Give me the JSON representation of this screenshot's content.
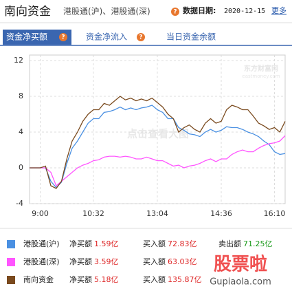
{
  "header": {
    "title": "南向资金",
    "subtitle": "港股通(沪)、港股通(深)",
    "date_label": "数据日期:",
    "date": "2020-12-15",
    "more": "更多"
  },
  "tabs": [
    "资金净买额",
    "资金净流入",
    "当日资金余额"
  ],
  "watermarks": {
    "center": "点击查看大图",
    "logo": "东方财富网",
    "logo_sub": "eastmoney.com",
    "corner": "股票啦",
    "corner_sub": "Gupiaola.com"
  },
  "chart_data": {
    "type": "line",
    "categories": [
      null,
      null,
      "9:00",
      null,
      null,
      null,
      null,
      null,
      null,
      null,
      null,
      null,
      "10:32",
      null,
      null,
      null,
      null,
      null,
      null,
      null,
      null,
      null,
      null,
      null,
      "13:04",
      null,
      null,
      null,
      null,
      null,
      null,
      null,
      null,
      null,
      null,
      null,
      "14:36",
      null,
      null,
      null,
      null,
      null,
      null,
      null,
      null,
      null,
      "16:10",
      null,
      null
    ],
    "series": [
      {
        "name": "港股通(沪)",
        "color": "#4a90e2",
        "values": [
          0,
          0,
          0,
          0,
          -1.5,
          -2.2,
          -1.6,
          0.5,
          2.2,
          3,
          4,
          5,
          5.5,
          5.5,
          6.2,
          6.3,
          6.5,
          6.8,
          6.5,
          6.7,
          6.5,
          6.7,
          6.8,
          7,
          6.5,
          6.2,
          5.5,
          5.5,
          4.5,
          4.2,
          3.8,
          3.7,
          3.5,
          4,
          4.3,
          4,
          4.2,
          4.6,
          4.5,
          4.5,
          4.3,
          4,
          3.8,
          3.5,
          3,
          2.6,
          1.8,
          1.5,
          1.6
        ]
      },
      {
        "name": "港股通(深)",
        "color": "#ff55ff",
        "values": [
          0,
          0,
          0,
          0,
          -0.5,
          -2,
          -1.5,
          -1,
          -0.5,
          0,
          0.3,
          0.5,
          0.8,
          0.9,
          1.2,
          1.3,
          1.3,
          1.2,
          1.3,
          1.2,
          1,
          1,
          1.2,
          1,
          0.8,
          0.8,
          0.5,
          0.2,
          0.3,
          0,
          0.2,
          0.3,
          0.5,
          0.8,
          1,
          0.7,
          1,
          1,
          1.5,
          1.8,
          2,
          1.8,
          1.8,
          2.2,
          2.5,
          2.7,
          2.8,
          3,
          3.6
        ]
      },
      {
        "name": "南向资金",
        "color": "#7a4a1e",
        "values": [
          0,
          0,
          0,
          0.2,
          -2,
          -2.3,
          -1.5,
          1,
          3,
          4,
          5.2,
          6,
          6.5,
          6.5,
          7.2,
          7,
          7.5,
          8,
          7.6,
          7.8,
          7.5,
          7.7,
          7.5,
          7.8,
          7.3,
          6.8,
          6,
          5.5,
          4,
          4.5,
          4.8,
          4.3,
          4,
          5,
          5.5,
          5,
          5.2,
          6.5,
          7,
          6.8,
          6.5,
          6.5,
          5.8,
          5,
          4.7,
          4.3,
          4.5,
          4,
          5.2
        ]
      }
    ],
    "ylim": [
      -4,
      12
    ],
    "yticks": [
      -4,
      0,
      4,
      8,
      12
    ],
    "grid": true
  },
  "summary": {
    "rows": [
      {
        "net_label": "净买额",
        "net": "1.59亿",
        "buy_label": "买入额",
        "buy": "72.83亿",
        "sell_label": "卖出额",
        "sell": "71.25亿"
      },
      {
        "net_label": "净买额",
        "net": "3.59亿",
        "buy_label": "买入额",
        "buy": "63.03亿"
      },
      {
        "net_label": "净买额",
        "net": "5.18亿",
        "buy_label": "买入额",
        "buy": "135.87亿"
      }
    ]
  }
}
